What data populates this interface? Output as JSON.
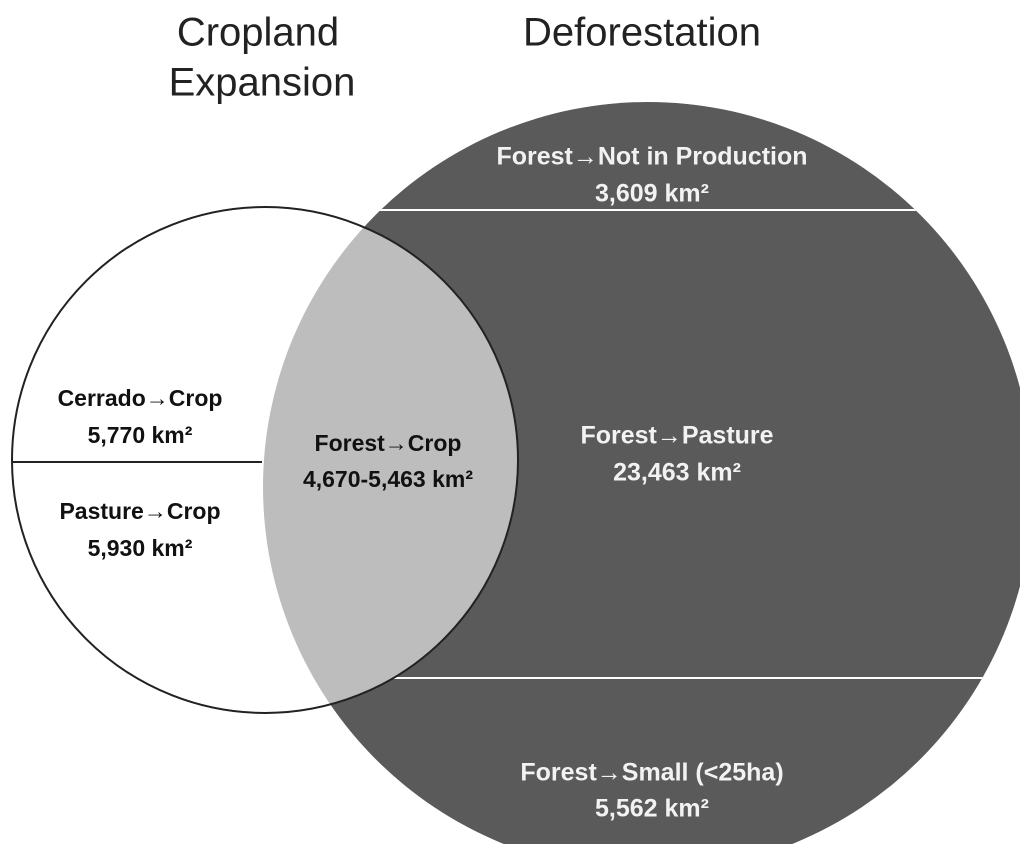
{
  "sets": {
    "cropland": {
      "title": [
        "Cropland",
        "Expansion"
      ]
    },
    "deforestation": {
      "title": "Deforestation"
    }
  },
  "regions": [
    {
      "label": "Forest→Not in Production",
      "area": "3,609 km²"
    },
    {
      "label": "Forest→Pasture",
      "area": "23,463 km²"
    },
    {
      "label": "Forest→Small (<25ha)",
      "area": "5,562 km²"
    },
    {
      "label": "Forest→Crop",
      "area": "4,670-5,463 km²"
    },
    {
      "label": "Cerrado→Crop",
      "area": "5,770 km²"
    },
    {
      "label": "Pasture→Crop",
      "area": "5,930 km²"
    }
  ]
}
